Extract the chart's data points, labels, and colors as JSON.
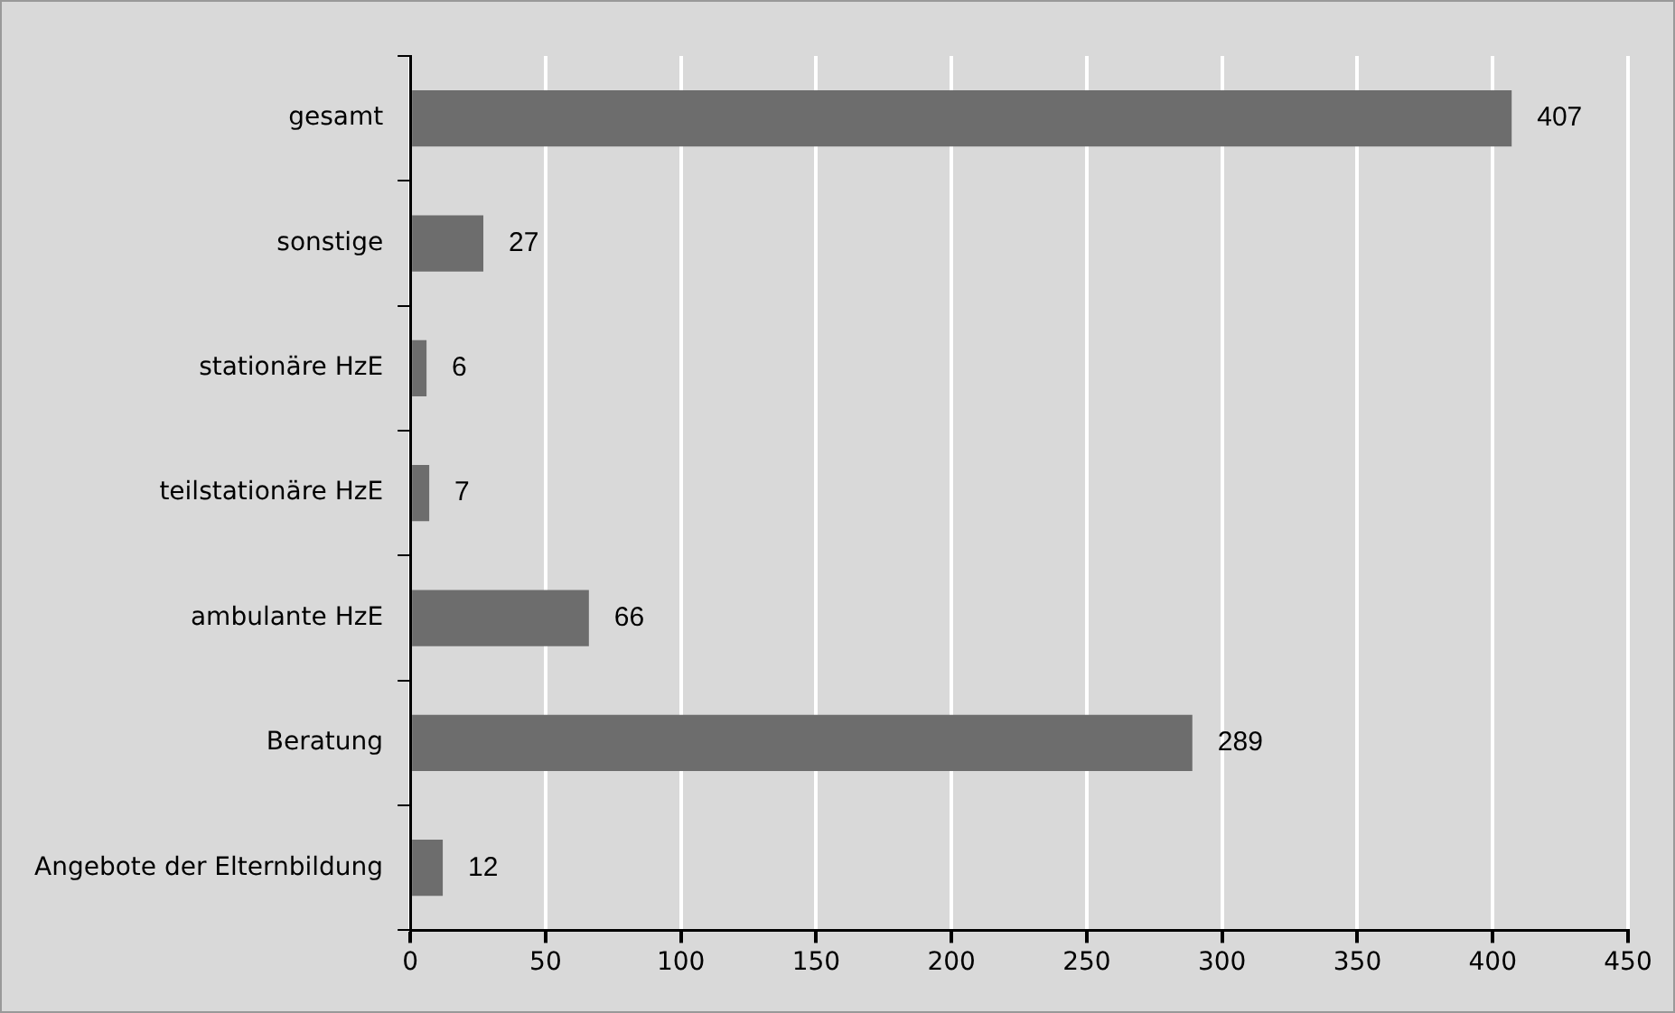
{
  "chart_data": {
    "type": "bar",
    "orientation": "horizontal",
    "categories": [
      "gesamt",
      "sonstige",
      "stationäre HzE",
      "teilstationäre HzE",
      "ambulante HzE",
      "Beratung",
      "Angebote der Elternbildung"
    ],
    "values": [
      407,
      27,
      6,
      7,
      66,
      289,
      12
    ],
    "color": "#6d6d6d",
    "xlim": [
      0,
      450
    ],
    "xticks": [
      0,
      50,
      100,
      150,
      200,
      250,
      300,
      350,
      400,
      450
    ],
    "grid": "x",
    "legend": false,
    "data_labels": true
  }
}
